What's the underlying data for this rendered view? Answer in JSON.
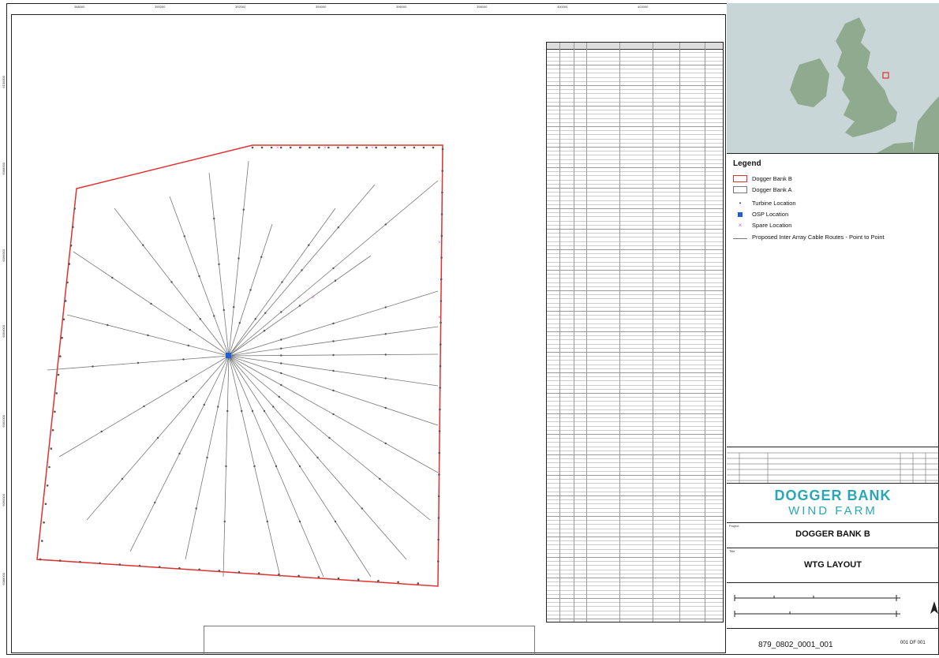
{
  "map": {
    "x_ticks": [
      "388000",
      "390000",
      "392000",
      "394000",
      "396000",
      "398000",
      "400000",
      "402000"
    ],
    "y_ticks": [
      "6100000",
      "6098000",
      "6096000",
      "6094000",
      "6092000",
      "6090000",
      "6088000",
      "6086000"
    ],
    "colors": {
      "boundary": "#e03030",
      "cable": "#777777",
      "turbine": "#555555",
      "osp": "#1f5fd6",
      "spare": "#d45fd4"
    }
  },
  "legend": {
    "title": "Legend",
    "items": [
      {
        "label": "Dogger Bank B",
        "symbol": "red-outline-box"
      },
      {
        "label": "Dogger Bank A",
        "symbol": "grey-outline-box"
      },
      {
        "label": "Turbine Location",
        "symbol": "grey-dot"
      },
      {
        "label": "OSP Location",
        "symbol": "blue-square"
      },
      {
        "label": "Spare Location",
        "symbol": "pink-cross"
      },
      {
        "label": "Proposed Inter Array Cable Routes - Point to Point",
        "symbol": "grey-line"
      }
    ]
  },
  "title_block": {
    "logo_line1": "DOGGER BANK",
    "logo_line2": "WIND FARM",
    "project_label": "Project",
    "project": "DOGGER BANK B",
    "title_label": "Title",
    "title": "WTG LAYOUT",
    "drawing_no": "879_0802_0001_001",
    "sheet": "001 OF 001"
  }
}
